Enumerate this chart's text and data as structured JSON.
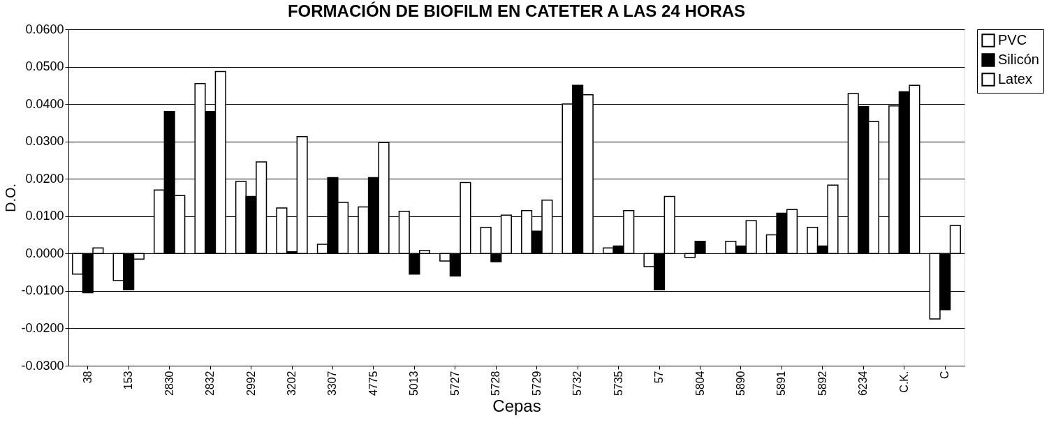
{
  "chart_data": {
    "type": "bar",
    "title": "FORMACIÓN DE BIOFILM EN CATETER A LAS 24 HORAS",
    "xlabel": "Cepas",
    "ylabel": "D.O.",
    "categories": [
      "38",
      "153",
      "2830",
      "2832",
      "2992",
      "3202",
      "3307",
      "4775",
      "5013",
      "5727",
      "5728",
      "5729",
      "5732",
      "5735",
      "57",
      "5804",
      "5890",
      "5891",
      "5892",
      "6234",
      "C.K.",
      "C"
    ],
    "series": [
      {
        "name": "PVC",
        "color": "#ffffff",
        "values": [
          -0.0055,
          -0.0072,
          0.017,
          0.0455,
          0.0193,
          0.0122,
          0.0025,
          0.0125,
          0.0113,
          -0.002,
          0.007,
          0.0115,
          0.04,
          0.0015,
          -0.0035,
          -0.001,
          0.0033,
          0.005,
          0.007,
          0.0428,
          0.0395,
          -0.0175
        ]
      },
      {
        "name": "Silicón",
        "color": "#000000",
        "values": [
          -0.0105,
          -0.0097,
          0.038,
          0.038,
          0.0153,
          0.0005,
          0.0203,
          0.0203,
          -0.0055,
          -0.006,
          -0.0022,
          0.006,
          0.045,
          0.002,
          -0.0097,
          0.0033,
          0.002,
          0.0108,
          0.002,
          0.0393,
          0.0433,
          -0.015
        ]
      },
      {
        "name": "Latex",
        "color": "#ffffff",
        "values": [
          0.0015,
          -0.0015,
          0.0155,
          0.0487,
          0.0245,
          0.0313,
          0.0137,
          0.0297,
          0.0008,
          0.019,
          0.0103,
          0.0143,
          0.0425,
          0.0115,
          0.0153,
          null,
          0.0088,
          0.0118,
          0.0183,
          0.0353,
          0.045,
          0.0075
        ]
      }
    ],
    "ylim": [
      -0.03,
      0.06
    ],
    "yticks": [
      {
        "value": -0.03,
        "label": "-0.0300"
      },
      {
        "value": -0.02,
        "label": "-0.0200"
      },
      {
        "value": -0.01,
        "label": "-0.0100"
      },
      {
        "value": 0.0,
        "label": "0.0000"
      },
      {
        "value": 0.01,
        "label": "0.0100"
      },
      {
        "value": 0.02,
        "label": "0.0200"
      },
      {
        "value": 0.03,
        "label": "0.0300"
      },
      {
        "value": 0.04,
        "label": "0.0400"
      },
      {
        "value": 0.05,
        "label": "0.0500"
      },
      {
        "value": 0.06,
        "label": "0.0600"
      }
    ],
    "grid": "y",
    "legend": "right"
  }
}
